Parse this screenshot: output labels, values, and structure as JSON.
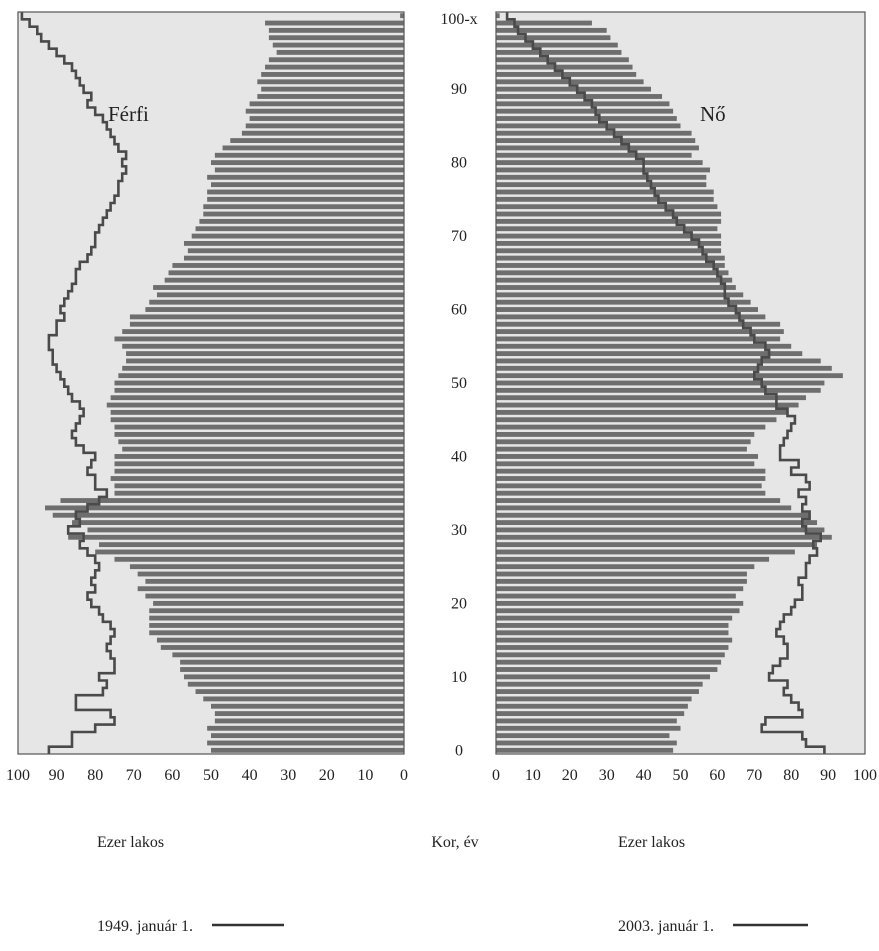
{
  "chart_data": {
    "type": "bar",
    "orientation": "horizontal",
    "subtype": "population-pyramid",
    "xlabel_left": "Ezer lakos",
    "xlabel_right": "Ezer lakos",
    "ylabel": "Kor, év",
    "y_top_label": "100-x",
    "xlim_left": [
      100,
      0
    ],
    "xlim_right": [
      0,
      100
    ],
    "ylim": [
      0,
      100
    ],
    "x_ticks_left": [
      "100",
      "90",
      "80",
      "70",
      "60",
      "50",
      "40",
      "30",
      "20",
      "10",
      "0"
    ],
    "x_ticks_right": [
      "0",
      "10",
      "20",
      "30",
      "40",
      "50",
      "60",
      "70",
      "80",
      "90",
      "100"
    ],
    "y_ticks": [
      "0",
      "10",
      "20",
      "30",
      "40",
      "50",
      "60",
      "70",
      "80",
      "90"
    ],
    "ages": [
      0,
      1,
      2,
      3,
      4,
      5,
      6,
      7,
      8,
      9,
      10,
      11,
      12,
      13,
      14,
      15,
      16,
      17,
      18,
      19,
      20,
      21,
      22,
      23,
      24,
      25,
      26,
      27,
      28,
      29,
      30,
      31,
      32,
      33,
      34,
      35,
      36,
      37,
      38,
      39,
      40,
      41,
      42,
      43,
      44,
      45,
      46,
      47,
      48,
      49,
      50,
      51,
      52,
      53,
      54,
      55,
      56,
      57,
      58,
      59,
      60,
      61,
      62,
      63,
      64,
      65,
      66,
      67,
      68,
      69,
      70,
      71,
      72,
      73,
      74,
      75,
      76,
      77,
      78,
      79,
      80,
      81,
      82,
      83,
      84,
      85,
      86,
      87,
      88,
      89,
      90,
      91,
      92,
      93,
      94,
      95,
      96,
      97,
      98,
      99,
      "100-x"
    ],
    "panels": [
      {
        "label": "Férfi",
        "side": "left",
        "series": [
          {
            "name": "2003. január 1.",
            "type": "bar",
            "values": [
              50,
              51,
              50,
              51,
              49,
              49,
              50,
              52,
              54,
              56,
              57,
              58,
              58,
              60,
              63,
              64,
              66,
              66,
              66,
              66,
              65,
              67,
              69,
              67,
              69,
              71,
              75,
              80,
              79,
              87,
              82,
              86,
              91,
              93,
              89,
              75,
              75,
              76,
              75,
              75,
              75,
              73,
              74,
              75,
              75,
              76,
              76,
              77,
              76,
              75,
              75,
              74,
              73,
              72,
              72,
              73,
              75,
              73,
              71,
              71,
              67,
              66,
              64,
              65,
              62,
              61,
              60,
              57,
              56,
              57,
              55,
              54,
              53,
              52,
              52,
              51,
              51,
              50,
              51,
              49,
              50,
              49,
              47,
              45,
              42,
              41,
              40,
              41,
              40,
              38,
              37,
              38,
              37,
              36,
              35,
              33,
              34,
              35,
              35,
              36,
              1
            ]
          },
          {
            "name": "1949. január 1.",
            "type": "line",
            "values": [
              92,
              86,
              86,
              80,
              75,
              76,
              85,
              85,
              78,
              77,
              79,
              75,
              75,
              76,
              77,
              76,
              75,
              76,
              78,
              79,
              81,
              82,
              80,
              81,
              80,
              79,
              80,
              82,
              84,
              83,
              87,
              84,
              85,
              82,
              79,
              77,
              80,
              80,
              82,
              81,
              80,
              83,
              85,
              86,
              85,
              84,
              83,
              84,
              86,
              87,
              88,
              89,
              90,
              91,
              91,
              92,
              92,
              90,
              90,
              88,
              89,
              88,
              87,
              86,
              85,
              85,
              84,
              82,
              81,
              80,
              80,
              79,
              78,
              77,
              76,
              75,
              74,
              74,
              73,
              72,
              73,
              72,
              74,
              75,
              76,
              77,
              78,
              80,
              82,
              81,
              83,
              84,
              85,
              86,
              88,
              90,
              92,
              94,
              95,
              97,
              99
            ]
          }
        ]
      },
      {
        "label": "Nő",
        "side": "right",
        "series": [
          {
            "name": "2003. január 1.",
            "type": "bar",
            "values": [
              48,
              49,
              47,
              50,
              49,
              51,
              52,
              53,
              55,
              56,
              58,
              60,
              61,
              62,
              63,
              64,
              63,
              63,
              64,
              66,
              67,
              65,
              67,
              68,
              68,
              70,
              74,
              81,
              87,
              91,
              89,
              87,
              85,
              80,
              77,
              73,
              72,
              73,
              73,
              70,
              71,
              68,
              69,
              70,
              73,
              76,
              79,
              82,
              84,
              88,
              89,
              94,
              91,
              88,
              83,
              80,
              77,
              78,
              77,
              73,
              71,
              69,
              67,
              65,
              64,
              63,
              62,
              62,
              61,
              61,
              61,
              60,
              61,
              61,
              60,
              59,
              59,
              57,
              57,
              58,
              56,
              53,
              55,
              54,
              53,
              50,
              49,
              48,
              47,
              45,
              42,
              40,
              38,
              37,
              36,
              34,
              33,
              31,
              30,
              26,
              1
            ]
          },
          {
            "name": "1949. január 1.",
            "type": "line",
            "values": [
              89,
              84,
              83,
              72,
              73,
              83,
              82,
              80,
              78,
              79,
              74,
              75,
              77,
              79,
              79,
              78,
              76,
              77,
              78,
              80,
              81,
              83,
              83,
              82,
              84,
              84,
              85,
              87,
              86,
              88,
              84,
              83,
              85,
              83,
              84,
              82,
              85,
              84,
              80,
              82,
              77,
              77,
              78,
              79,
              80,
              81,
              79,
              76,
              76,
              73,
              72,
              70,
              71,
              72,
              74,
              73,
              70,
              69,
              67,
              66,
              65,
              63,
              62,
              62,
              61,
              60,
              59,
              57,
              56,
              55,
              53,
              51,
              49,
              48,
              46,
              44,
              43,
              42,
              41,
              40,
              40,
              38,
              36,
              34,
              32,
              30,
              28,
              27,
              26,
              24,
              22,
              20,
              18,
              16,
              14,
              12,
              10,
              8,
              6,
              5,
              3
            ]
          }
        ]
      }
    ],
    "legend": [
      {
        "label": "1949. január 1.",
        "position": "bottom-left"
      },
      {
        "label": "2003. január 1.",
        "position": "bottom-right"
      }
    ],
    "colors": {
      "bar": "#6e6e6e",
      "line": "#4a4a4a",
      "panel_background": "#e6e6e6",
      "panel_border": "#555555"
    }
  }
}
